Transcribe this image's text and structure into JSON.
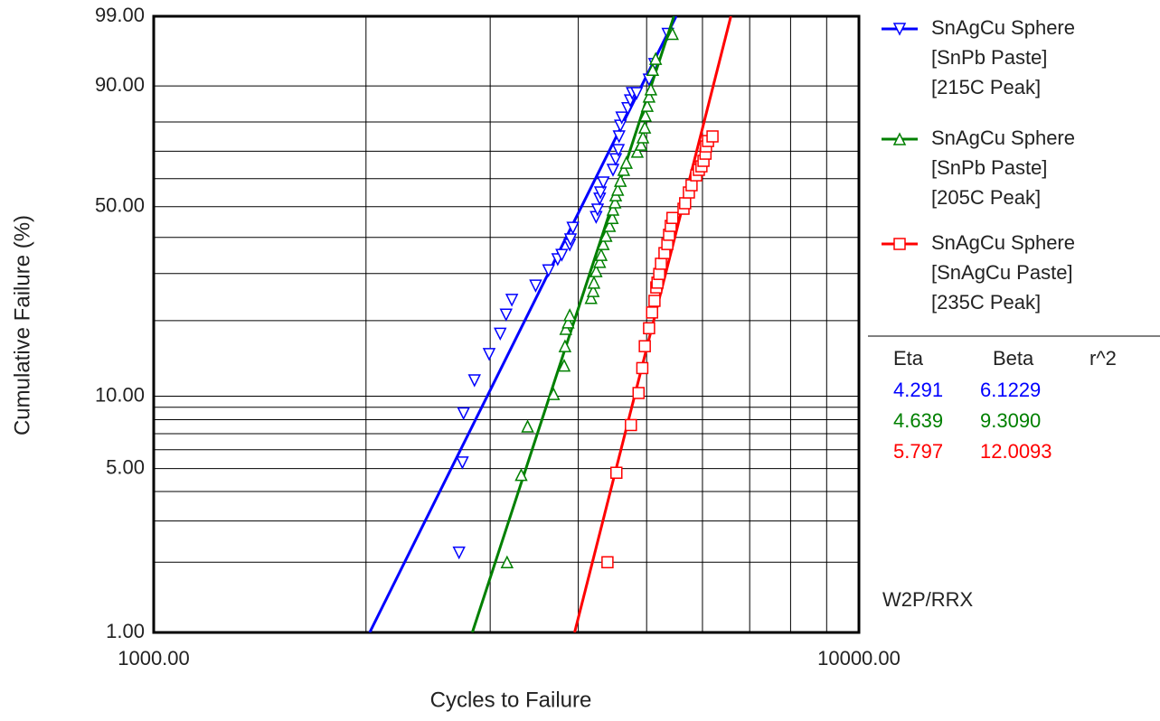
{
  "chart_data": {
    "type": "scatter",
    "xscale": "log",
    "yscale": "weibull",
    "xlabel": "Cycles to Failure",
    "ylabel": "Cumulative Failure (%)",
    "annotation": "W2P/RRX",
    "xlim": [
      1000,
      10000
    ],
    "ylim": [
      1,
      99
    ],
    "xticks": [
      {
        "value": 1000,
        "label": "1000.00"
      },
      {
        "value": 10000,
        "label": "10000.00"
      }
    ],
    "yticks": [
      {
        "value": 1,
        "label": "1.00"
      },
      {
        "value": 5,
        "label": "5.00"
      },
      {
        "value": 10,
        "label": "10.00"
      },
      {
        "value": 50,
        "label": "50.00"
      },
      {
        "value": 90,
        "label": "90.00"
      },
      {
        "value": 99,
        "label": "99.00"
      }
    ],
    "xgrid": [
      2000,
      3000,
      4000,
      5000,
      6000,
      7000,
      8000,
      9000
    ],
    "ygrid": [
      2,
      3,
      4,
      6,
      7,
      8,
      9,
      20,
      30,
      40,
      60,
      70,
      80
    ],
    "grid": true,
    "legend": "right",
    "table_headers": [
      "Eta",
      "Beta",
      "r^2"
    ],
    "series": [
      {
        "name": [
          "SnAgCu Sphere",
          "[SnPb Paste]",
          "[215C Peak]"
        ],
        "color": "#0000ff",
        "marker": "triangle-down",
        "eta": {
          "value": 4291,
          "label": "4.291"
        },
        "beta": 6.1229,
        "x": [
          2710,
          2740,
          2750,
          2850,
          2990,
          3100,
          3160,
          3220,
          3480,
          3630,
          3740,
          3790,
          3890,
          3900,
          3930,
          4240,
          4260,
          4290,
          4300,
          4340,
          4480,
          4520,
          4560,
          4570,
          4590,
          4610,
          4700,
          4740,
          4770,
          4840,
          5040,
          5130,
          5360
        ],
        "values": [
          2.2,
          5.3,
          8.5,
          11.6,
          14.8,
          17.8,
          21.1,
          24.0,
          27.1,
          30.8,
          33.7,
          34.9,
          37.8,
          39.4,
          43.0,
          46.5,
          49.0,
          52.8,
          55.0,
          58.6,
          63.2,
          67.1,
          70.4,
          75.2,
          78.8,
          81.4,
          84.2,
          86.4,
          88.3,
          88.3,
          91.4,
          94.3,
          97.9
        ]
      },
      {
        "name": [
          "SnAgCu Sphere",
          "[SnPb Paste]",
          "[205C Peak]"
        ],
        "color": "#008000",
        "marker": "triangle-up",
        "eta": {
          "value": 4639,
          "label": "4.639"
        },
        "beta": {
          "value": 9.309,
          "label": "9.3090"
        },
        "x": [
          3170,
          3320,
          3390,
          3690,
          3820,
          3830,
          3840,
          3870,
          3890,
          4170,
          4200,
          4210,
          4240,
          4290,
          4310,
          4340,
          4380,
          4430,
          4470,
          4480,
          4510,
          4520,
          4550,
          4590,
          4640,
          4680,
          4850,
          4910,
          4940,
          4970,
          4980,
          5010,
          5040,
          5070,
          5100,
          5150,
          5440
        ],
        "values": [
          2.0,
          4.7,
          7.5,
          10.2,
          13.3,
          15.9,
          18.6,
          19.7,
          21.0,
          24.4,
          25.9,
          27.8,
          30.6,
          33.0,
          34.9,
          38.0,
          40.5,
          43.6,
          46.2,
          49.0,
          51.5,
          54.0,
          56.0,
          59.2,
          63.2,
          65.8,
          69.8,
          72.3,
          74.9,
          78.2,
          82.0,
          84.9,
          87.4,
          89.2,
          93.3,
          95.1,
          97.9
        ]
      },
      {
        "name": [
          "SnAgCu Sphere",
          "[SnAgCu Paste]",
          "[235C Peak]"
        ],
        "color": "#ff0000",
        "marker": "square",
        "eta": {
          "value": 5797,
          "label": "5.797"
        },
        "beta": 12.0093,
        "x": [
          4400,
          4530,
          4750,
          4870,
          4930,
          4970,
          5040,
          5090,
          5130,
          5160,
          5180,
          5210,
          5240,
          5300,
          5350,
          5380,
          5410,
          5440,
          5640,
          5670,
          5740,
          5790,
          5880,
          5930,
          5980,
          6020,
          6060,
          6070,
          6110,
          6200
        ],
        "values": [
          2.0,
          4.8,
          7.6,
          10.3,
          13.0,
          15.9,
          18.7,
          21.5,
          23.8,
          26.7,
          27.8,
          29.9,
          32.5,
          35.4,
          38.0,
          40.8,
          43.6,
          46.2,
          49.3,
          51.2,
          55.0,
          57.6,
          61.2,
          63.2,
          64.5,
          66.5,
          69.1,
          71.7,
          73.6,
          75.2
        ]
      }
    ]
  }
}
